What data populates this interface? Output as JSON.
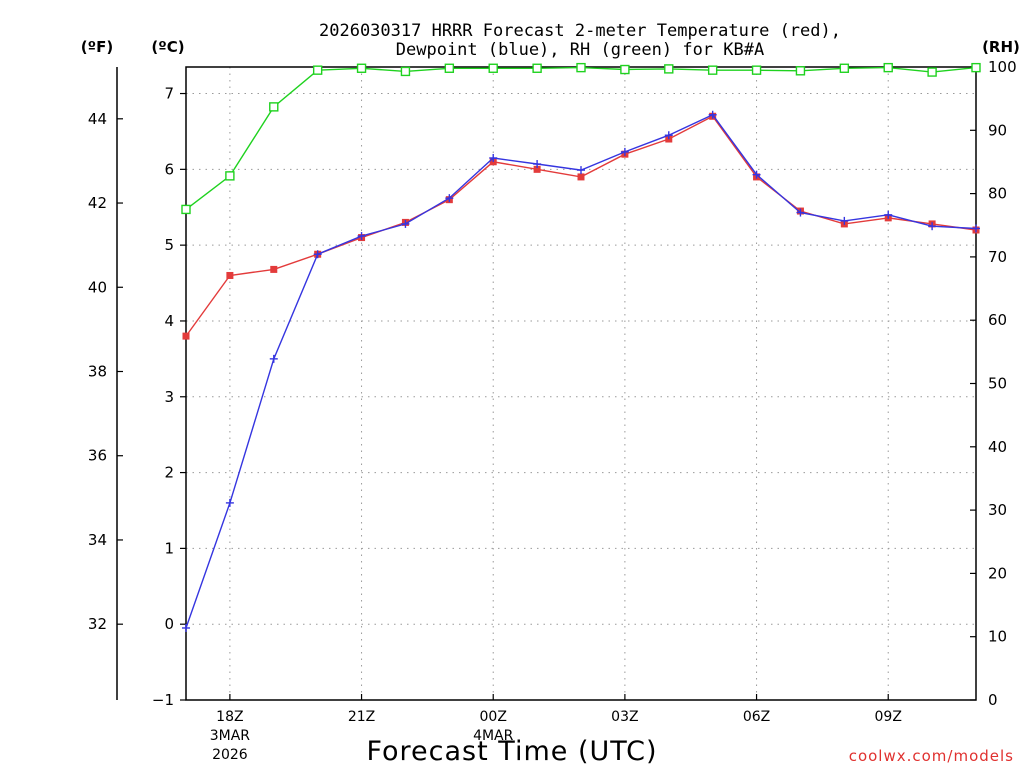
{
  "title": {
    "line1": "2026030317 HRRR Forecast 2-meter Temperature (red),",
    "line2": "Dewpoint (blue), RH (green) for KB#A"
  },
  "units": {
    "fahrenheit": "(ºF)",
    "celsius": "(ºC)",
    "rh": "(RH)"
  },
  "xlabel": "Forecast Time (UTC)",
  "credit": "coolwx.com/models",
  "colors": {
    "temperature": "#e33b3b",
    "dewpoint": "#3535e0",
    "rh": "#1fd21f",
    "grid": "#9a9a9a",
    "credit": "#e0312f"
  },
  "chart_data": {
    "type": "line",
    "x_hours": [
      17,
      18,
      19,
      20,
      21,
      22,
      23,
      0,
      1,
      2,
      3,
      4,
      5,
      6,
      7,
      8,
      9,
      10,
      11
    ],
    "x_ticks": [
      {
        "hour": 18,
        "label": "18Z",
        "sub1": "3MAR",
        "sub2": "2026"
      },
      {
        "hour": 21,
        "label": "21Z",
        "sub1": "",
        "sub2": ""
      },
      {
        "hour": 0,
        "label": "00Z",
        "sub1": "4MAR",
        "sub2": ""
      },
      {
        "hour": 3,
        "label": "03Z",
        "sub1": "",
        "sub2": ""
      },
      {
        "hour": 6,
        "label": "06Z",
        "sub1": "",
        "sub2": ""
      },
      {
        "hour": 9,
        "label": "09Z",
        "sub1": "",
        "sub2": ""
      }
    ],
    "celsius_axis": {
      "ylim": [
        -1.0,
        7.35
      ],
      "ticks": [
        -1,
        0,
        1,
        2,
        3,
        4,
        5,
        6,
        7
      ]
    },
    "fahrenheit_axis": {
      "ylim": [
        30.2,
        45.23
      ],
      "ticks": [
        32,
        34,
        36,
        38,
        40,
        42,
        44
      ]
    },
    "rh_axis": {
      "ylim": [
        0,
        100
      ],
      "ticks": [
        0,
        10,
        20,
        30,
        40,
        50,
        60,
        70,
        80,
        90,
        100
      ]
    },
    "series": [
      {
        "name": "Temperature",
        "axis": "celsius",
        "marker": "square",
        "values": [
          3.8,
          4.6,
          4.68,
          4.88,
          5.1,
          5.3,
          5.6,
          6.1,
          6.0,
          5.9,
          6.2,
          6.4,
          6.7,
          5.9,
          5.45,
          5.28,
          5.36,
          5.28,
          5.2
        ]
      },
      {
        "name": "Dewpoint",
        "axis": "celsius",
        "marker": "plus",
        "values": [
          -0.05,
          1.6,
          3.5,
          4.88,
          5.12,
          5.28,
          5.62,
          6.15,
          6.07,
          5.99,
          6.23,
          6.45,
          6.72,
          5.93,
          5.43,
          5.32,
          5.4,
          5.25,
          5.22
        ]
      },
      {
        "name": "RH",
        "axis": "rh",
        "marker": "open-square",
        "values": [
          77.5,
          82.8,
          93.7,
          99.5,
          99.8,
          99.3,
          99.8,
          99.8,
          99.8,
          99.9,
          99.6,
          99.7,
          99.5,
          99.5,
          99.4,
          99.8,
          99.9,
          99.2,
          99.9
        ]
      }
    ]
  }
}
